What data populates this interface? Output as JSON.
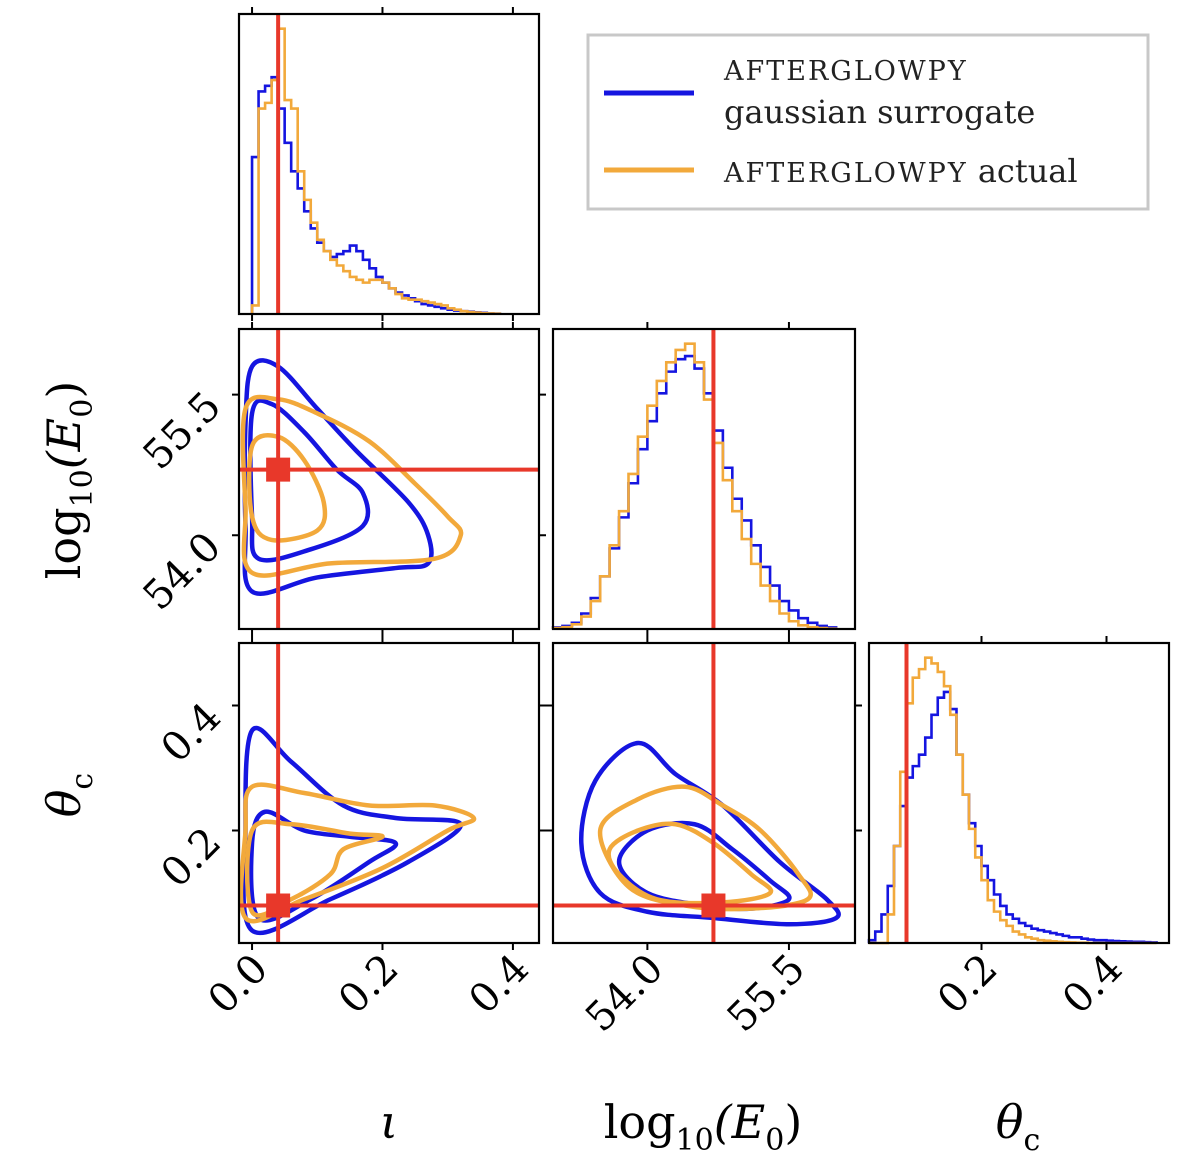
{
  "colors": {
    "surrogate": "#1515e0",
    "actual": "#f2a93b",
    "truth": "#e8382a",
    "axis": "#000000"
  },
  "legend": {
    "surrogate_line1": "AFTERGLOWPY",
    "surrogate_line2": "gaussian surrogate",
    "actual_name": "AFTERGLOWPY",
    "actual_suffix": " actual"
  },
  "axes": {
    "iota": {
      "label": "ι",
      "ticks": [
        "0.0",
        "0.2",
        "0.4"
      ],
      "tick_values": [
        0.0,
        0.2,
        0.4
      ],
      "range": [
        -0.02,
        0.44
      ]
    },
    "logE0": {
      "label_prefix": "log",
      "label_sub": "10",
      "label_arg": "(E",
      "label_arg_sub": "0",
      "label_close": ")",
      "ticks": [
        "54.0",
        "55.5"
      ],
      "tick_values": [
        54.0,
        55.5
      ],
      "range": [
        53.0,
        56.2
      ]
    },
    "thetac": {
      "label": "θ",
      "label_sub": "c",
      "ticks": [
        "0.2",
        "0.4"
      ],
      "tick_values": [
        0.2,
        0.4
      ],
      "range": [
        0.02,
        0.5
      ]
    }
  },
  "chart_data": {
    "type": "corner",
    "parameters": [
      "iota",
      "logE0",
      "thetac"
    ],
    "truth": {
      "iota": 0.04,
      "logE0": 54.7,
      "thetac": 0.08
    },
    "series": [
      {
        "name": "AFTERGLOWPY gaussian surrogate",
        "color_key": "surrogate"
      },
      {
        "name": "AFTERGLOWPY actual",
        "color_key": "actual"
      }
    ],
    "hist_iota": {
      "bin_edges": [
        0.0,
        0.01,
        0.02,
        0.03,
        0.04,
        0.05,
        0.06,
        0.07,
        0.08,
        0.09,
        0.1,
        0.11,
        0.12,
        0.13,
        0.14,
        0.15,
        0.16,
        0.17,
        0.18,
        0.19,
        0.2,
        0.21,
        0.22,
        0.23,
        0.24,
        0.25,
        0.26,
        0.27,
        0.28,
        0.29,
        0.3,
        0.31,
        0.32,
        0.33,
        0.34,
        0.35,
        0.36,
        0.37,
        0.38
      ],
      "surrogate": [
        0.55,
        0.78,
        0.8,
        0.83,
        0.72,
        0.6,
        0.5,
        0.44,
        0.36,
        0.3,
        0.25,
        0.22,
        0.2,
        0.21,
        0.22,
        0.24,
        0.22,
        0.19,
        0.16,
        0.13,
        0.11,
        0.09,
        0.075,
        0.065,
        0.055,
        0.045,
        0.035,
        0.03,
        0.025,
        0.02,
        0.015,
        0.012,
        0.01,
        0.008,
        0.006,
        0.004,
        0.002,
        0.001
      ],
      "actual": [
        0.03,
        0.72,
        0.74,
        0.82,
        1.0,
        0.75,
        0.72,
        0.5,
        0.4,
        0.32,
        0.26,
        0.22,
        0.19,
        0.17,
        0.15,
        0.13,
        0.12,
        0.11,
        0.12,
        0.12,
        0.11,
        0.09,
        0.07,
        0.055,
        0.05,
        0.05,
        0.045,
        0.04,
        0.035,
        0.03,
        0.02,
        0.015,
        0.01,
        0.007,
        0.005,
        0.003,
        0.002,
        0.001
      ]
    },
    "hist_logE0": {
      "bin_edges": [
        53.0,
        53.1,
        53.2,
        53.3,
        53.4,
        53.5,
        53.6,
        53.7,
        53.8,
        53.9,
        54.0,
        54.1,
        54.2,
        54.3,
        54.4,
        54.5,
        54.6,
        54.7,
        54.8,
        54.9,
        55.0,
        55.1,
        55.2,
        55.3,
        55.4,
        55.5,
        55.6,
        55.7,
        55.8,
        55.9,
        56.0
      ],
      "surrogate": [
        0.005,
        0.01,
        0.02,
        0.05,
        0.1,
        0.17,
        0.26,
        0.36,
        0.47,
        0.58,
        0.67,
        0.76,
        0.83,
        0.87,
        0.88,
        0.84,
        0.76,
        0.64,
        0.52,
        0.42,
        0.35,
        0.27,
        0.2,
        0.14,
        0.09,
        0.06,
        0.035,
        0.02,
        0.01,
        0.005
      ],
      "actual": [
        0.003,
        0.006,
        0.015,
        0.04,
        0.09,
        0.17,
        0.27,
        0.38,
        0.5,
        0.62,
        0.72,
        0.8,
        0.86,
        0.9,
        0.92,
        0.86,
        0.74,
        0.6,
        0.48,
        0.38,
        0.29,
        0.21,
        0.14,
        0.09,
        0.05,
        0.025,
        0.012,
        0.006,
        0.003,
        0.001
      ]
    },
    "hist_thetac": {
      "bin_edges": [
        0.02,
        0.03,
        0.04,
        0.05,
        0.06,
        0.07,
        0.08,
        0.09,
        0.1,
        0.11,
        0.12,
        0.13,
        0.14,
        0.15,
        0.16,
        0.17,
        0.18,
        0.19,
        0.2,
        0.21,
        0.22,
        0.23,
        0.24,
        0.25,
        0.26,
        0.27,
        0.28,
        0.29,
        0.3,
        0.31,
        0.32,
        0.33,
        0.34,
        0.35,
        0.36,
        0.37,
        0.38,
        0.39,
        0.4,
        0.41,
        0.42,
        0.43,
        0.44,
        0.45,
        0.46,
        0.47,
        0.48
      ],
      "surrogate": [
        0.01,
        0.04,
        0.1,
        0.2,
        0.34,
        0.48,
        0.58,
        0.62,
        0.66,
        0.72,
        0.8,
        0.86,
        0.88,
        0.82,
        0.66,
        0.52,
        0.42,
        0.34,
        0.27,
        0.22,
        0.17,
        0.13,
        0.1,
        0.085,
        0.07,
        0.06,
        0.05,
        0.045,
        0.04,
        0.035,
        0.03,
        0.025,
        0.02,
        0.02,
        0.015,
        0.012,
        0.01,
        0.01,
        0.008,
        0.007,
        0.006,
        0.005,
        0.004,
        0.004,
        0.003,
        0.002
      ],
      "actual": [
        0.0,
        0.0,
        0.0,
        0.1,
        0.34,
        0.6,
        0.84,
        0.93,
        0.96,
        1.0,
        0.98,
        0.95,
        0.9,
        0.8,
        0.66,
        0.52,
        0.4,
        0.3,
        0.22,
        0.15,
        0.11,
        0.08,
        0.06,
        0.04,
        0.03,
        0.02,
        0.015,
        0.01,
        0.008,
        0.006,
        0.004,
        0.003,
        0.002,
        0.001,
        0.001,
        0.0,
        0.0,
        0.0,
        0.0,
        0.0,
        0.0,
        0.0,
        0.0,
        0.0,
        0.0,
        0.0
      ]
    },
    "contours_iota_logE0": {
      "surrogate": [
        [
          [
            0.0,
            53.4
          ],
          [
            0.1,
            53.55
          ],
          [
            0.22,
            53.65
          ],
          [
            0.27,
            53.7
          ],
          [
            0.27,
            54.0
          ],
          [
            0.24,
            54.35
          ],
          [
            0.16,
            54.9
          ],
          [
            0.1,
            55.35
          ],
          [
            0.04,
            55.8
          ],
          [
            0.0,
            55.8
          ],
          [
            -0.01,
            55.2
          ],
          [
            -0.01,
            54.1
          ],
          [
            0.0,
            53.4
          ]
        ],
        [
          [
            0.01,
            53.75
          ],
          [
            0.09,
            53.85
          ],
          [
            0.17,
            54.1
          ],
          [
            0.17,
            54.45
          ],
          [
            0.13,
            54.7
          ],
          [
            0.08,
            55.1
          ],
          [
            0.03,
            55.4
          ],
          [
            0.0,
            55.3
          ],
          [
            0.0,
            54.2
          ],
          [
            0.01,
            53.75
          ]
        ]
      ],
      "actual": [
        [
          [
            0.0,
            53.6
          ],
          [
            0.12,
            53.7
          ],
          [
            0.28,
            53.75
          ],
          [
            0.32,
            54.0
          ],
          [
            0.3,
            54.2
          ],
          [
            0.25,
            54.55
          ],
          [
            0.18,
            55.0
          ],
          [
            0.1,
            55.3
          ],
          [
            0.04,
            55.45
          ],
          [
            -0.01,
            55.35
          ],
          [
            -0.01,
            54.3
          ],
          [
            0.0,
            53.6
          ]
        ],
        [
          [
            0.03,
            53.95
          ],
          [
            0.1,
            54.05
          ],
          [
            0.11,
            54.35
          ],
          [
            0.08,
            54.8
          ],
          [
            0.04,
            55.05
          ],
          [
            0.0,
            54.95
          ],
          [
            0.0,
            54.2
          ],
          [
            0.03,
            53.95
          ]
        ]
      ]
    },
    "contours_iota_thetac": {
      "surrogate": [
        [
          [
            0.0,
            0.04
          ],
          [
            0.12,
            0.09
          ],
          [
            0.24,
            0.15
          ],
          [
            0.32,
            0.21
          ],
          [
            0.22,
            0.22
          ],
          [
            0.14,
            0.24
          ],
          [
            0.06,
            0.31
          ],
          [
            0.0,
            0.36
          ],
          [
            -0.01,
            0.2
          ],
          [
            0.0,
            0.04
          ]
        ],
        [
          [
            0.01,
            0.06
          ],
          [
            0.09,
            0.09
          ],
          [
            0.18,
            0.15
          ],
          [
            0.22,
            0.18
          ],
          [
            0.15,
            0.19
          ],
          [
            0.08,
            0.2
          ],
          [
            0.02,
            0.23
          ],
          [
            0.0,
            0.18
          ],
          [
            0.01,
            0.06
          ]
        ]
      ],
      "actual": [
        [
          [
            -0.01,
            0.06
          ],
          [
            0.08,
            0.09
          ],
          [
            0.2,
            0.14
          ],
          [
            0.3,
            0.2
          ],
          [
            0.34,
            0.22
          ],
          [
            0.28,
            0.24
          ],
          [
            0.18,
            0.24
          ],
          [
            0.08,
            0.26
          ],
          [
            0.0,
            0.27
          ],
          [
            -0.01,
            0.2
          ],
          [
            -0.01,
            0.06
          ]
        ],
        [
          [
            0.0,
            0.07
          ],
          [
            0.06,
            0.09
          ],
          [
            0.12,
            0.13
          ],
          [
            0.14,
            0.17
          ],
          [
            0.2,
            0.19
          ],
          [
            0.15,
            0.195
          ],
          [
            0.06,
            0.21
          ],
          [
            0.0,
            0.2
          ],
          [
            0.0,
            0.07
          ]
        ]
      ]
    },
    "contours_logE0_thetac": {
      "surrogate": [
        [
          [
            53.3,
            0.18
          ],
          [
            53.45,
            0.28
          ],
          [
            53.9,
            0.34
          ],
          [
            54.3,
            0.29
          ],
          [
            54.8,
            0.24
          ],
          [
            55.4,
            0.15
          ],
          [
            55.9,
            0.09
          ],
          [
            56.0,
            0.06
          ],
          [
            55.5,
            0.05
          ],
          [
            54.7,
            0.06
          ],
          [
            54.0,
            0.07
          ],
          [
            53.5,
            0.1
          ],
          [
            53.3,
            0.18
          ]
        ],
        [
          [
            53.7,
            0.15
          ],
          [
            54.0,
            0.2
          ],
          [
            54.5,
            0.21
          ],
          [
            54.9,
            0.17
          ],
          [
            55.3,
            0.12
          ],
          [
            55.5,
            0.09
          ],
          [
            55.1,
            0.075
          ],
          [
            54.6,
            0.08
          ],
          [
            54.0,
            0.1
          ],
          [
            53.7,
            0.15
          ]
        ]
      ],
      "actual": [
        [
          [
            53.5,
            0.2
          ],
          [
            53.9,
            0.25
          ],
          [
            54.4,
            0.27
          ],
          [
            54.8,
            0.24
          ],
          [
            55.2,
            0.2
          ],
          [
            55.6,
            0.13
          ],
          [
            55.7,
            0.09
          ],
          [
            55.1,
            0.075
          ],
          [
            54.4,
            0.08
          ],
          [
            53.8,
            0.11
          ],
          [
            53.5,
            0.2
          ]
        ],
        [
          [
            53.6,
            0.17
          ],
          [
            53.9,
            0.2
          ],
          [
            54.3,
            0.21
          ],
          [
            54.7,
            0.18
          ],
          [
            55.1,
            0.13
          ],
          [
            55.3,
            0.1
          ],
          [
            54.8,
            0.085
          ],
          [
            54.1,
            0.09
          ],
          [
            53.7,
            0.13
          ],
          [
            53.6,
            0.17
          ]
        ]
      ]
    }
  }
}
